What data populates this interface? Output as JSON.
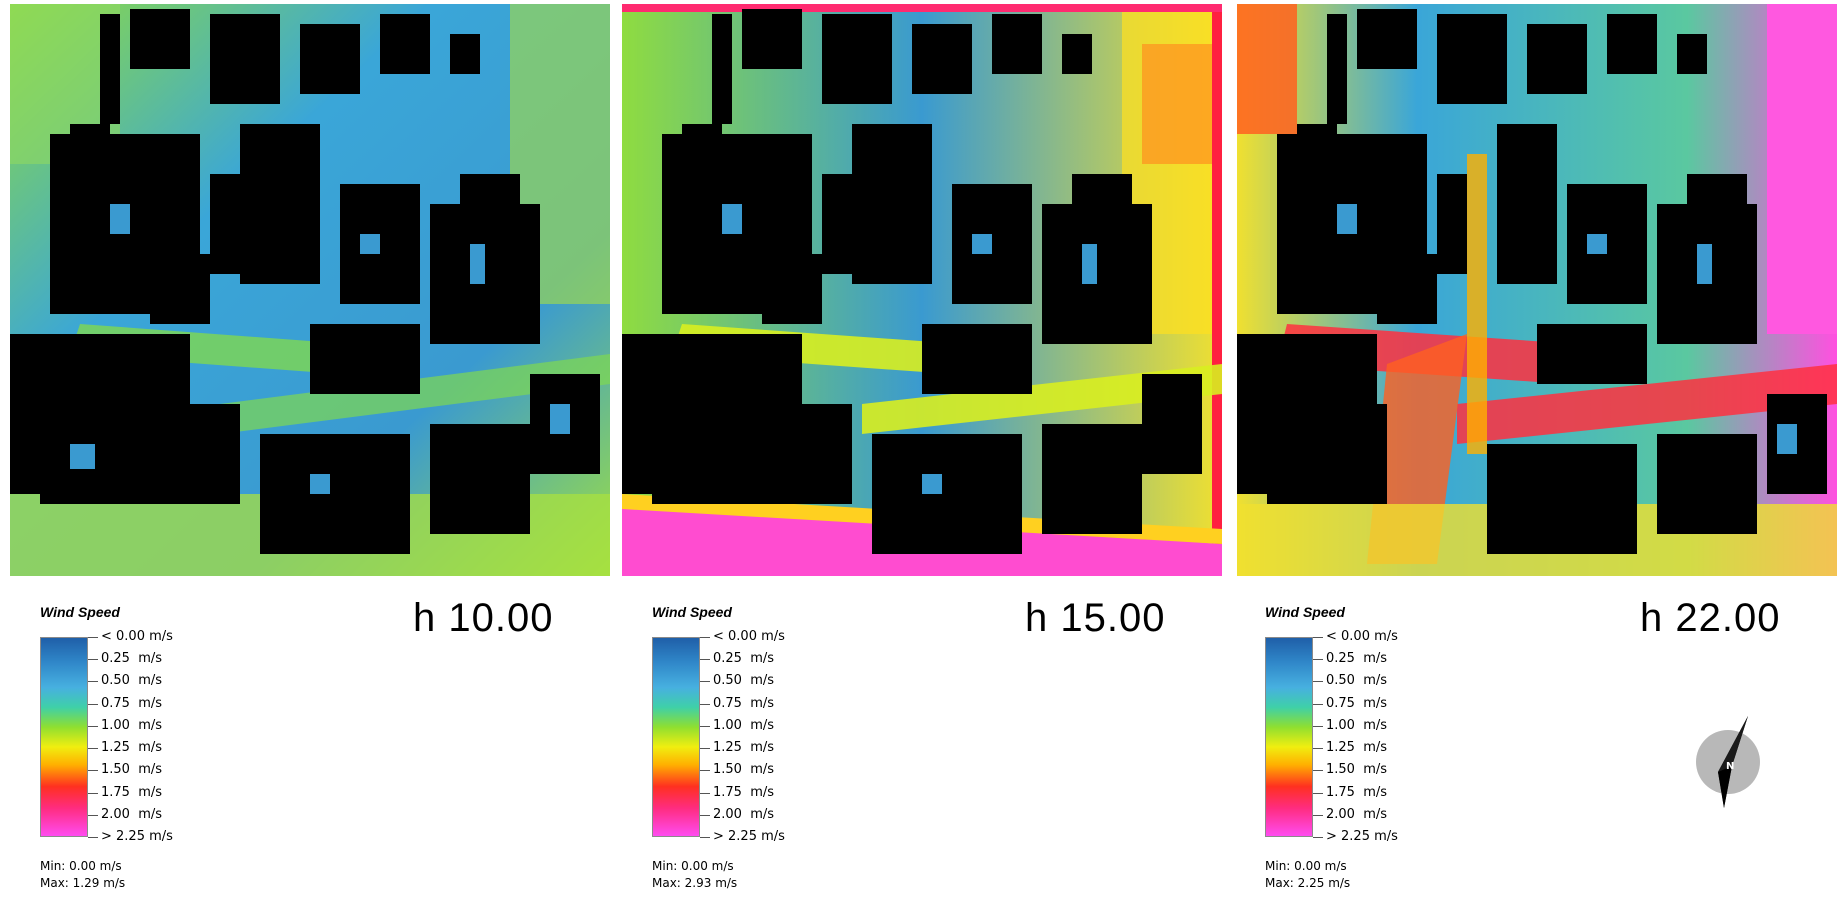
{
  "legend": {
    "title": "Wind Speed",
    "ticks": [
      "< 0.00 m/s",
      "0.25  m/s",
      "0.50  m/s",
      "0.75  m/s",
      "1.00  m/s",
      "1.25  m/s",
      "1.50  m/s",
      "1.75  m/s",
      "2.00  m/s",
      "> 2.25 m/s"
    ],
    "colors": [
      "#1f5fa8",
      "#2f86c8",
      "#47b0e0",
      "#3fd0a8",
      "#8fdf30",
      "#f0ee10",
      "#ffb000",
      "#ff3020",
      "#ff2c80",
      "#ff4cf0"
    ]
  },
  "panels": [
    {
      "hour_label": "h 10.00",
      "min": "Min: 0.00 m/s",
      "max": "Max: 1.29 m/s"
    },
    {
      "hour_label": "h 15.00",
      "min": "Min: 0.00 m/s",
      "max": "Max: 2.93 m/s"
    },
    {
      "hour_label": "h 22.00",
      "min": "Min: 0.00 m/s",
      "max": "Max: 2.25 m/s"
    }
  ],
  "compass": {
    "label": "N",
    "icon": "north-arrow-icon"
  }
}
